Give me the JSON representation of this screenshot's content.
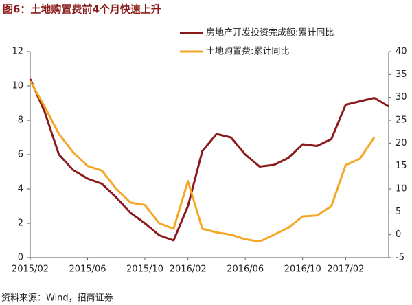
{
  "chart_data": {
    "type": "line",
    "title": "图6：土地购置费前4个月快速上升",
    "source": "资料来源：Wind，招商证券",
    "categories": [
      "2015/02",
      null,
      null,
      null,
      "2015/06",
      null,
      null,
      null,
      "2015/10",
      null,
      null,
      "2016/02",
      null,
      null,
      null,
      "2016/06",
      null,
      null,
      null,
      "2016/10",
      null,
      null,
      "2017/02",
      null,
      null,
      null
    ],
    "series": [
      {
        "name": "房地产开发投资完成额:累计同比",
        "color": "#8b1a1a",
        "axis": "y",
        "values": [
          10.4,
          8.5,
          6.0,
          5.1,
          4.6,
          4.3,
          3.5,
          2.6,
          2.0,
          1.3,
          1.0,
          3.0,
          6.2,
          7.2,
          7.0,
          6.0,
          5.3,
          5.4,
          5.8,
          6.6,
          6.5,
          6.9,
          8.9,
          9.1,
          9.3,
          8.8
        ]
      },
      {
        "name": "土地购置费:累计同比",
        "color": "#f5a623",
        "axis": "y2",
        "values": [
          33.5,
          28,
          22,
          18,
          15,
          14,
          10,
          7,
          6.5,
          2.5,
          1.3,
          11.7,
          1.3,
          0.5,
          0,
          -1,
          -1.5,
          0,
          1.5,
          4,
          4.2,
          6.2,
          15.2,
          16.6,
          21.3,
          null
        ]
      }
    ],
    "ylim": [
      0,
      12
    ],
    "yticks": [
      0,
      2,
      4,
      6,
      8,
      10,
      12
    ],
    "y2lim": [
      -5,
      40
    ],
    "y2ticks": [
      -5,
      0,
      5,
      10,
      15,
      20,
      25,
      30,
      35,
      40
    ],
    "grid": false,
    "legend": "top-right"
  }
}
